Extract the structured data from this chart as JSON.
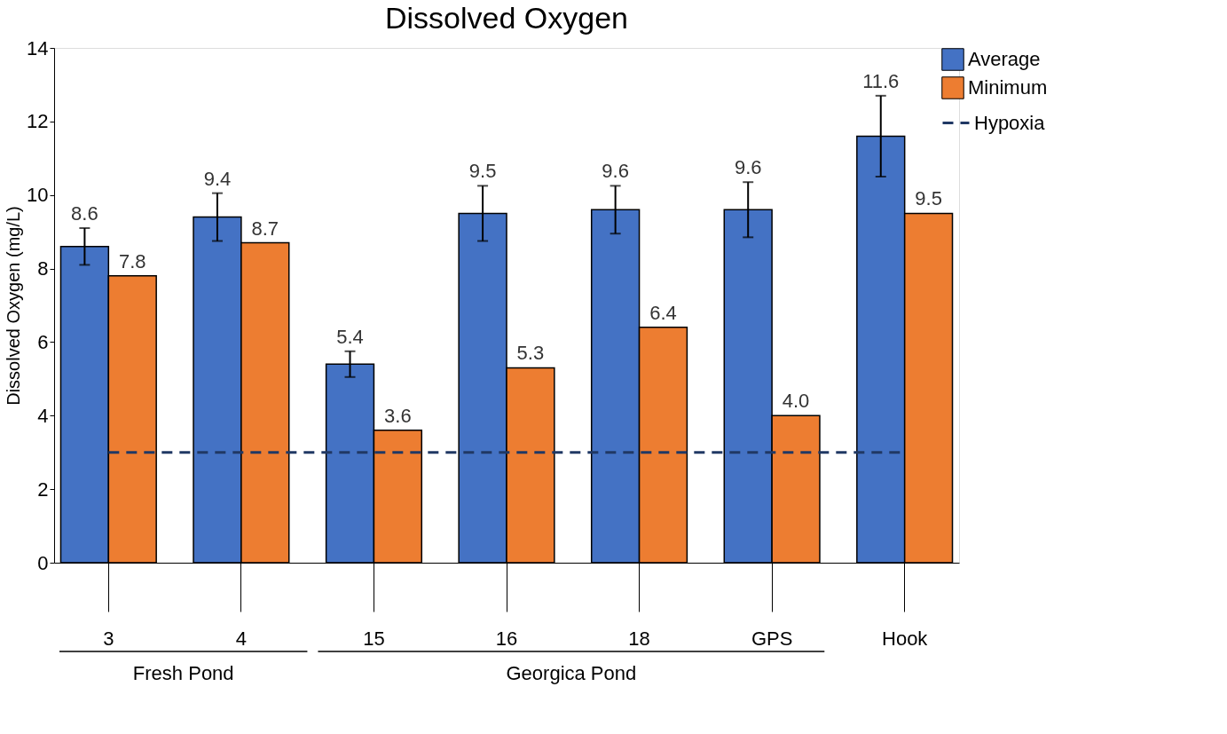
{
  "chart_data": {
    "type": "bar",
    "title": "Dissolved Oxygen",
    "ylabel": "Dissolved Oxygen (mg/L)",
    "categories": [
      "3",
      "4",
      "15",
      "16",
      "18",
      "GPS",
      "Hook"
    ],
    "series": [
      {
        "name": "Average",
        "color": "#4472c4",
        "values": [
          8.6,
          9.4,
          5.4,
          9.5,
          9.6,
          9.6,
          11.6
        ],
        "errors": [
          0.5,
          0.65,
          0.35,
          0.75,
          0.65,
          0.75,
          1.1
        ]
      },
      {
        "name": "Minimum",
        "color": "#ed7d31",
        "values": [
          7.8,
          8.7,
          3.6,
          5.3,
          6.4,
          4.0,
          9.5
        ],
        "value_labels": [
          "7.8",
          "8.7",
          "3.6",
          "5.3",
          "6.4",
          "4.0",
          "9.5"
        ]
      }
    ],
    "ylim": [
      0,
      14
    ],
    "yticks": [
      0,
      2,
      4,
      6,
      8,
      10,
      12,
      14
    ],
    "ref_lines": [
      {
        "axis": "y",
        "value": 3,
        "label": "Hypoxia",
        "color": "#203864",
        "line_style": "dashed"
      }
    ],
    "annotations": [
      "Fresh Pond",
      "Georgica Pond"
    ],
    "data_labels": true,
    "legend": "right",
    "grid": false
  }
}
